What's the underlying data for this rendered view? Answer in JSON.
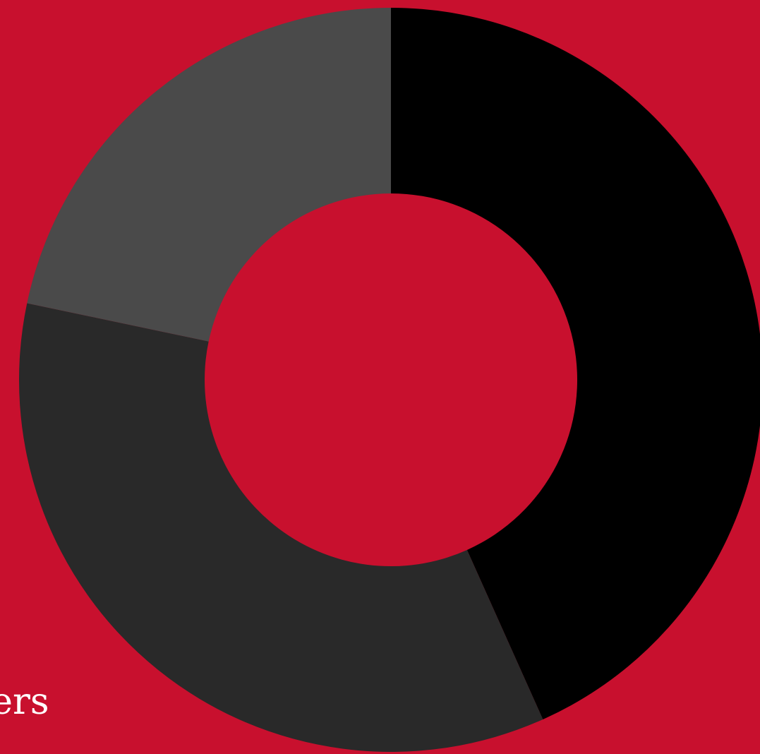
{
  "background_color": "#c8102e",
  "caption": "fers",
  "chart_data": {
    "type": "pie",
    "style": "donut",
    "start_angle_deg": 0,
    "direction": "clockwise",
    "slices": [
      {
        "value": 43.3,
        "color": "#000000"
      },
      {
        "value": 35.0,
        "color": "#292929"
      },
      {
        "value": 21.7,
        "color": "#4a4a4a"
      }
    ]
  }
}
